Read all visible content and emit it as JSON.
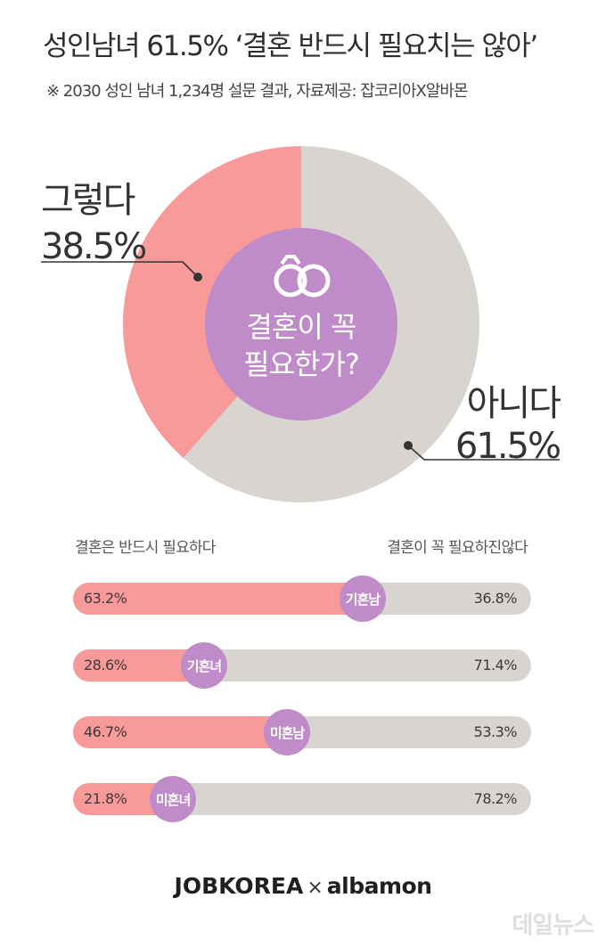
{
  "header": {
    "title": "성인남녀 61.5% ‘결혼 반드시 필요치는 않아’",
    "subtitle": "※ 2030 성인 남녀 1,234명 설문 결과,  자료제공: 잡코리아X알바몬"
  },
  "colors": {
    "yes": "#f89a9a",
    "no": "#d8d4d0",
    "accent": "#c08bc9"
  },
  "chart_data": [
    {
      "type": "pie",
      "center_question_line1": "결혼이 꼭",
      "center_question_line2": "필요한가?",
      "center_icon": "rings-icon",
      "slices": [
        {
          "label": "아니다",
          "value": 61.5,
          "value_label": "61.5%"
        },
        {
          "label": "그렇다",
          "value": 38.5,
          "value_label": "38.5%"
        }
      ]
    },
    {
      "type": "bar",
      "stacked": true,
      "orientation": "horizontal",
      "left_header": "결혼은 반드시 필요하다",
      "right_header": "결혼이 꼭 필요하진않다",
      "categories": [
        "기혼남",
        "기혼녀",
        "미혼남",
        "미혼녀"
      ],
      "series": [
        {
          "name": "결혼은 반드시 필요하다",
          "values": [
            63.2,
            28.6,
            46.7,
            21.8
          ],
          "labels": [
            "63.2%",
            "28.6%",
            "46.7%",
            "21.8%"
          ]
        },
        {
          "name": "결혼이 꼭 필요하진않다",
          "values": [
            36.8,
            71.4,
            53.3,
            78.2
          ],
          "labels": [
            "36.8%",
            "71.4%",
            "53.3%",
            "78.2%"
          ]
        }
      ]
    }
  ],
  "footer": {
    "brand1": "JOBKOREA",
    "separator": "×",
    "brand2": "albamon"
  },
  "watermark": "데일뉴스"
}
